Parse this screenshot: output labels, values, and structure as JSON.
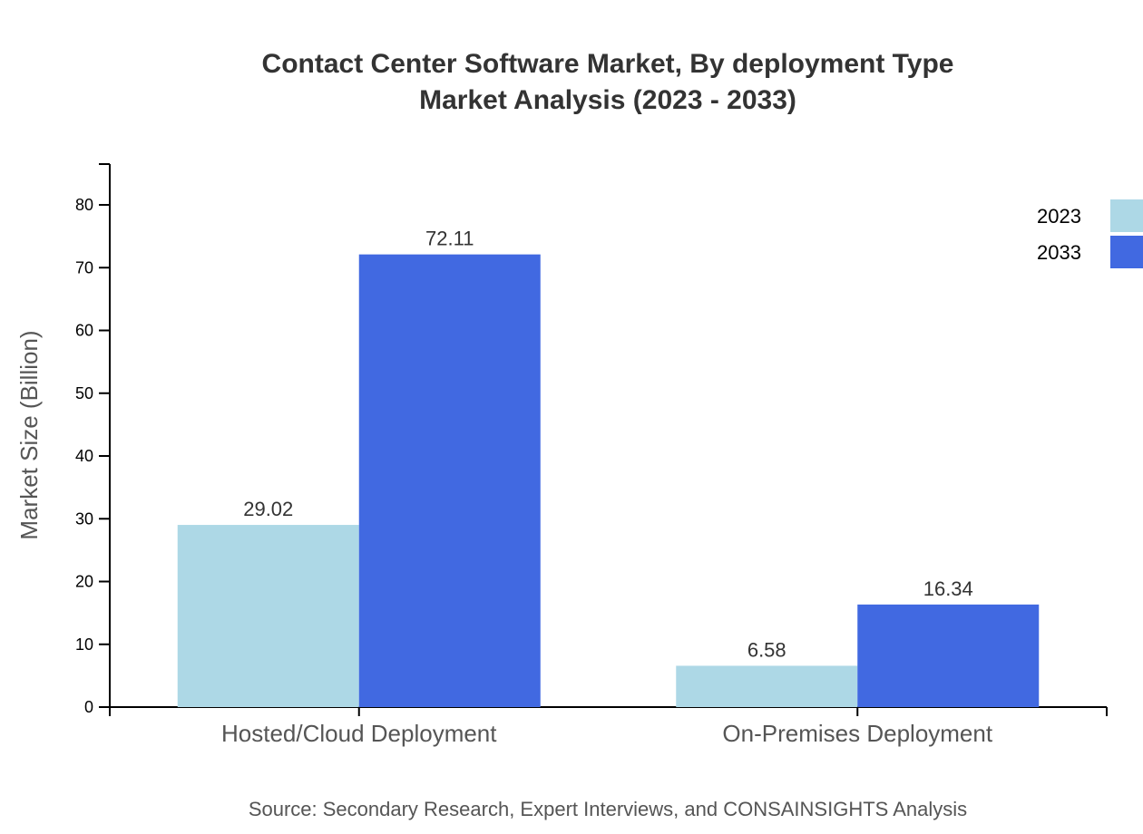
{
  "chart_data": {
    "type": "bar",
    "title_line1": "Contact Center Software Market, By deployment Type",
    "title_line2": "Market Analysis (2023 - 2033)",
    "xlabel": "",
    "ylabel": "Market Size (Billion)",
    "categories": [
      "Hosted/Cloud Deployment",
      "On-Premises Deployment"
    ],
    "series": [
      {
        "name": "2023",
        "values": [
          29.02,
          6.58
        ],
        "color": "#add8e6"
      },
      {
        "name": "2033",
        "values": [
          72.11,
          16.34
        ],
        "color": "#4169e1"
      }
    ],
    "ylim": [
      0,
      86.5
    ],
    "yticks": [
      0,
      10,
      20,
      30,
      40,
      50,
      60,
      70,
      80
    ],
    "grid": false,
    "legend": "top-right",
    "source": "Source: Secondary Research, Expert Interviews, and CONSAINSIGHTS Analysis"
  }
}
